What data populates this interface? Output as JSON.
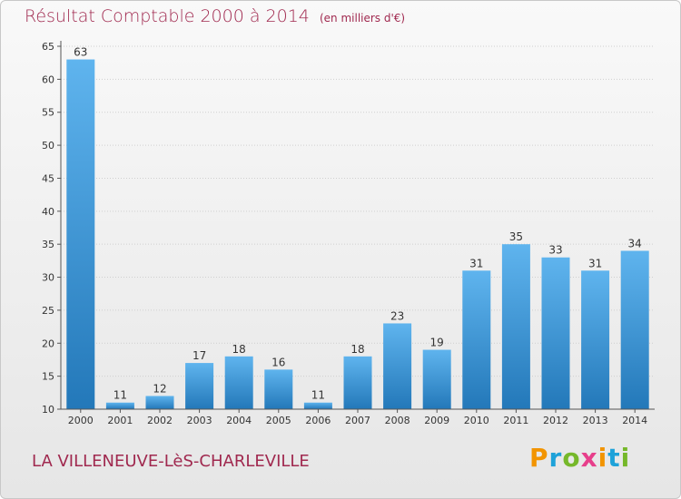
{
  "chart_data": {
    "type": "bar",
    "title": "Résultat Comptable 2000 à 2014",
    "subtitle": "(en milliers d'€)",
    "categories": [
      "2000",
      "2001",
      "2002",
      "2003",
      "2004",
      "2005",
      "2006",
      "2007",
      "2008",
      "2009",
      "2010",
      "2011",
      "2012",
      "2013",
      "2014"
    ],
    "values": [
      63,
      11,
      12,
      17,
      18,
      16,
      11,
      18,
      23,
      19,
      31,
      35,
      33,
      31,
      34
    ],
    "ylim": [
      10,
      65
    ],
    "yticks": [
      10,
      15,
      20,
      25,
      30,
      35,
      40,
      45,
      50,
      55,
      60,
      65
    ],
    "grid": true,
    "xlabel": "",
    "ylabel": ""
  },
  "footer": {
    "commune": "LA VILLENEUVE-LèS-CHARLEVILLE"
  },
  "logo": {
    "letters": [
      "P",
      "r",
      "o",
      "x",
      "i",
      "t",
      "i"
    ],
    "colors": [
      "#f29400",
      "#1ea2d9",
      "#76b82a",
      "#e73f8b",
      "#f29400",
      "#1ea2d9",
      "#76b82a"
    ]
  },
  "colors": {
    "bar_light": "#5fb4ee",
    "bar_dark": "#2378b9",
    "title": "#a0294f",
    "grid": "#cfcfcf"
  }
}
